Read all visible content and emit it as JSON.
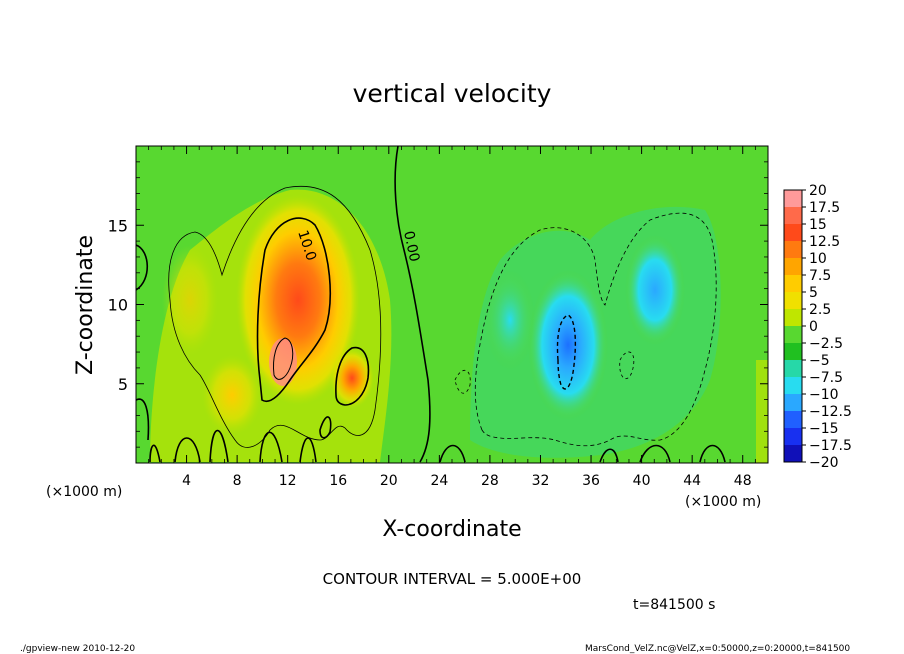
{
  "chart_data": {
    "type": "heatmap",
    "title": "vertical velocity",
    "xlabel": "X-coordinate",
    "ylabel": "Z-coordinate",
    "x_unit": "(×1000 m)",
    "y_unit": "(×1000 m)",
    "xlim": [
      0,
      50
    ],
    "ylim": [
      0,
      20
    ],
    "x_ticks": [
      4,
      8,
      12,
      16,
      20,
      24,
      28,
      32,
      36,
      40,
      44,
      48
    ],
    "y_ticks": [
      5,
      10,
      15
    ],
    "contour_interval_label": "CONTOUR INTERVAL = 5.000E+00",
    "contour_labels": [
      "10.0",
      "0.00"
    ],
    "time_label": "t=841500 s",
    "colorbar": {
      "levels": [
        20,
        17.5,
        15,
        12.5,
        10,
        7.5,
        5,
        2.5,
        0,
        -2.5,
        -5,
        -7.5,
        -10,
        -12.5,
        -15,
        -17.5,
        -20
      ],
      "labels": [
        "20",
        "17.5",
        "15",
        "12.5",
        "10",
        "7.5",
        "5",
        "2.5",
        "0",
        "−2.5",
        "−5",
        "−7.5",
        "−10",
        "−12.5",
        "−15",
        "−17.5",
        "−20"
      ],
      "colors": [
        "#ff9a9a",
        "#ff6a4a",
        "#ff4a1a",
        "#ff7a10",
        "#ffa500",
        "#ffcc00",
        "#f0e000",
        "#bfe600",
        "#58d830",
        "#20c020",
        "#26d8a8",
        "#28dcf0",
        "#2aa8ff",
        "#2060ff",
        "#1830f0",
        "#1010b8",
        "#6a14b0"
      ]
    },
    "features": [
      {
        "kind": "updraft",
        "x": 12.5,
        "z": 9,
        "peak": 12.5
      },
      {
        "kind": "updraft",
        "x": 17.5,
        "z": 5.5,
        "peak": 10
      },
      {
        "kind": "updraft",
        "x": 7.5,
        "z": 4,
        "peak": 7.5
      },
      {
        "kind": "downdraft",
        "x": 33.5,
        "z": 7.5,
        "peak": -7.5
      },
      {
        "kind": "downdraft",
        "x": 41.5,
        "z": 10.5,
        "peak": -5
      },
      {
        "kind": "downdraft",
        "x": 29.5,
        "z": 9,
        "peak": -2.5
      }
    ]
  },
  "footer": {
    "left": "./gpview-new 2010-12-20",
    "right": "MarsCond_VelZ.nc@VelZ,x=0:50000,z=0:20000,t=841500"
  },
  "colors": {
    "background": "#ffffff",
    "axis": "#000000"
  }
}
